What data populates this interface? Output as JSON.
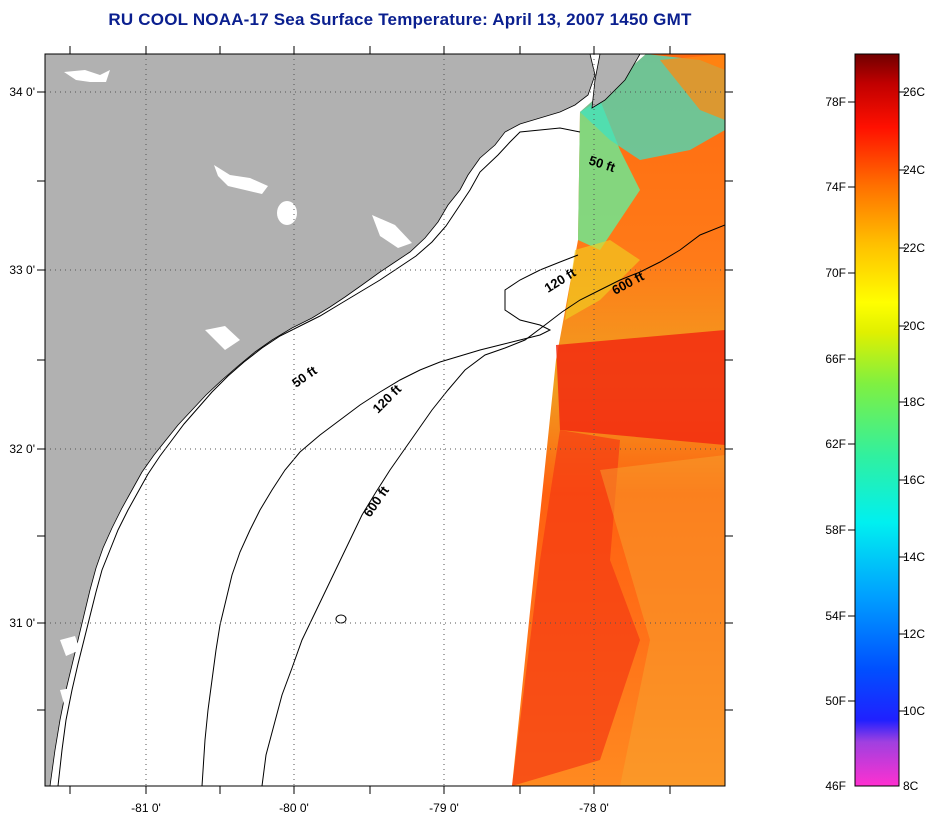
{
  "title": "RU COOL  NOAA-17  Sea Surface Temperature:  April 13, 2007 1450 GMT",
  "map": {
    "lon_ticks": [
      "-81 0'",
      "-80 0'",
      "-79 0'",
      "-78 0'"
    ],
    "lat_ticks": [
      "34 0'",
      "33 0'",
      "32 0'",
      "31 0'"
    ],
    "contour_labels": [
      "50 ft",
      "120 ft",
      "600 ft",
      "50 ft",
      "120 ft",
      "600 ft"
    ],
    "colors": {
      "land": "#b1b1b1",
      "ocean_nodata": "#ffffff",
      "grid": "#555555"
    }
  },
  "colorbar": {
    "fahrenheit_labels": [
      "78F",
      "74F",
      "70F",
      "66F",
      "62F",
      "58F",
      "54F",
      "50F",
      "46F"
    ],
    "celsius_labels": [
      "26C",
      "24C",
      "22C",
      "20C",
      "18C",
      "16C",
      "14C",
      "12C",
      "10C",
      "8C"
    ]
  }
}
